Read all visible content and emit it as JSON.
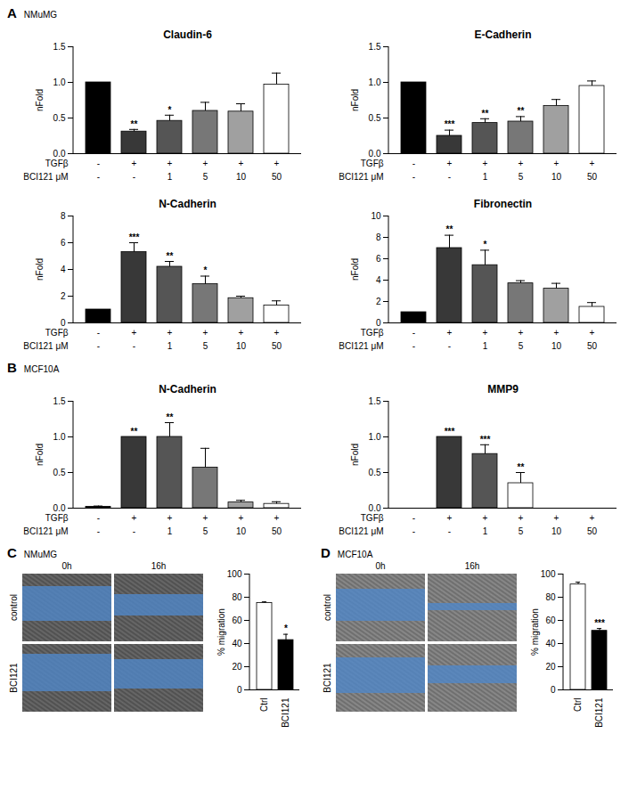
{
  "panels": [
    {
      "label": "A",
      "cell_line": "NMuMG"
    },
    {
      "label": "B",
      "cell_line": "MCF10A"
    },
    {
      "label": "C",
      "cell_line": "NMuMG"
    },
    {
      "label": "D",
      "cell_line": "MCF10A"
    }
  ],
  "chart_data": [
    {
      "panel": "A",
      "type": "bar",
      "title": "Claudin-6",
      "y_label": "nFold",
      "x_rows": [
        {
          "label": "TGFβ",
          "values": [
            "-",
            "+",
            "+",
            "+",
            "+",
            "+"
          ]
        },
        {
          "label": "BCI121 μM",
          "values": [
            "-",
            "-",
            "1",
            "5",
            "10",
            "50"
          ]
        }
      ],
      "values": [
        1.0,
        0.31,
        0.46,
        0.6,
        0.59,
        0.97
      ],
      "errors": [
        0,
        0.03,
        0.08,
        0.12,
        0.11,
        0.16
      ],
      "significance": [
        null,
        "**",
        "*",
        null,
        null,
        null
      ],
      "colors": [
        "#000000",
        "#383838",
        "#555555",
        "#777777",
        "#a0a0a0",
        "#ffffff"
      ],
      "ylim": [
        0,
        1.5
      ],
      "yticks": [
        {
          "value": 0,
          "label": "0.0"
        },
        {
          "value": 0.5,
          "label": "0.5"
        },
        {
          "value": 1,
          "label": "1.0"
        },
        {
          "value": 1.5,
          "label": "1.5"
        }
      ]
    },
    {
      "panel": "A",
      "type": "bar",
      "title": "E-Cadherin",
      "y_label": "nFold",
      "x_rows": [
        {
          "label": "TGFβ",
          "values": [
            "-",
            "+",
            "+",
            "+",
            "+",
            "+"
          ]
        },
        {
          "label": "BCI121 μM",
          "values": [
            "-",
            "-",
            "1",
            "5",
            "10",
            "50"
          ]
        }
      ],
      "values": [
        1.0,
        0.25,
        0.43,
        0.45,
        0.67,
        0.95
      ],
      "errors": [
        0,
        0.08,
        0.06,
        0.07,
        0.09,
        0.07
      ],
      "significance": [
        null,
        "***",
        "**",
        "**",
        null,
        null
      ],
      "colors": [
        "#000000",
        "#383838",
        "#555555",
        "#777777",
        "#a0a0a0",
        "#ffffff"
      ],
      "ylim": [
        0,
        1.5
      ],
      "yticks": [
        {
          "value": 0,
          "label": "0.0"
        },
        {
          "value": 0.5,
          "label": "0.5"
        },
        {
          "value": 1,
          "label": "1.0"
        },
        {
          "value": 1.5,
          "label": "1.5"
        }
      ]
    },
    {
      "panel": "A",
      "type": "bar",
      "title": "N-Cadherin",
      "y_label": "nFold",
      "x_rows": [
        {
          "label": "TGFβ",
          "values": [
            "-",
            "+",
            "+",
            "+",
            "+",
            "+"
          ]
        },
        {
          "label": "BCI121 μM",
          "values": [
            "-",
            "-",
            "1",
            "5",
            "10",
            "50"
          ]
        }
      ],
      "values": [
        1.0,
        5.3,
        4.2,
        2.9,
        1.85,
        1.3
      ],
      "errors": [
        0,
        0.7,
        0.4,
        0.6,
        0.15,
        0.35
      ],
      "significance": [
        null,
        "***",
        "**",
        "*",
        null,
        null
      ],
      "colors": [
        "#000000",
        "#383838",
        "#555555",
        "#777777",
        "#a0a0a0",
        "#ffffff"
      ],
      "ylim": [
        0,
        8
      ],
      "yticks": [
        0,
        2,
        4,
        6,
        8
      ]
    },
    {
      "panel": "A",
      "type": "bar",
      "title": "Fibronectin",
      "y_label": "nFold",
      "x_rows": [
        {
          "label": "TGFβ",
          "values": [
            "-",
            "+",
            "+",
            "+",
            "+",
            "+"
          ]
        },
        {
          "label": "BCI121 μM",
          "values": [
            "-",
            "-",
            "1",
            "5",
            "10",
            "50"
          ]
        }
      ],
      "values": [
        1.0,
        7.0,
        5.4,
        3.7,
        3.2,
        1.5
      ],
      "errors": [
        0,
        1.2,
        1.4,
        0.25,
        0.5,
        0.4
      ],
      "significance": [
        null,
        "**",
        "*",
        null,
        null,
        null
      ],
      "colors": [
        "#000000",
        "#383838",
        "#555555",
        "#777777",
        "#a0a0a0",
        "#ffffff"
      ],
      "ylim": [
        0,
        10
      ],
      "yticks": [
        0,
        2,
        4,
        6,
        8,
        10
      ]
    },
    {
      "panel": "B",
      "type": "bar",
      "title": "N-Cadherin",
      "y_label": "nFold",
      "x_rows": [
        {
          "label": "TGFβ",
          "values": [
            "-",
            "+",
            "+",
            "+",
            "+",
            "+"
          ]
        },
        {
          "label": "BCI121 μM",
          "values": [
            "-",
            "-",
            "1",
            "5",
            "10",
            "50"
          ]
        }
      ],
      "values": [
        0.02,
        1.0,
        1.0,
        0.57,
        0.08,
        0.06
      ],
      "errors": [
        0.01,
        0,
        0.2,
        0.27,
        0.03,
        0.03
      ],
      "significance": [
        null,
        "**",
        "**",
        null,
        null,
        null
      ],
      "colors": [
        "#000000",
        "#383838",
        "#555555",
        "#777777",
        "#a0a0a0",
        "#ffffff"
      ],
      "ylim": [
        0,
        1.5
      ],
      "yticks": [
        {
          "value": 0,
          "label": "0.0"
        },
        {
          "value": 0.5,
          "label": "0.5"
        },
        {
          "value": 1,
          "label": "1.0"
        },
        {
          "value": 1.5,
          "label": "1.5"
        }
      ]
    },
    {
      "panel": "B",
      "type": "bar",
      "title": "MMP9",
      "y_label": "nFold",
      "x_rows": [
        {
          "label": "TGFβ",
          "values": [
            "-",
            "+",
            "+",
            "+",
            "+",
            "+"
          ]
        },
        {
          "label": "BCI121 μM",
          "values": [
            "-",
            "-",
            "1",
            "5",
            "10",
            "50"
          ]
        }
      ],
      "values": [
        0,
        1.0,
        0.76,
        0.35,
        0,
        0
      ],
      "errors": [
        0,
        0,
        0.13,
        0.15,
        0,
        0
      ],
      "significance": [
        null,
        "***",
        "***",
        "**",
        null,
        null
      ],
      "colors": [
        "#000000",
        "#383838",
        "#555555",
        "#ffffff",
        "#a0a0a0",
        "#ffffff"
      ],
      "ylim": [
        0,
        1.5
      ],
      "yticks": [
        {
          "value": 0,
          "label": "0.0"
        },
        {
          "value": 0.5,
          "label": "0.5"
        },
        {
          "value": 1,
          "label": "1.0"
        },
        {
          "value": 1.5,
          "label": "1.5"
        }
      ]
    },
    {
      "panel": "C",
      "type": "bar",
      "y_label": "% migration",
      "categories": [
        "Ctrl",
        "BCI121"
      ],
      "values": [
        75,
        43
      ],
      "errors": [
        1,
        5
      ],
      "significance": [
        null,
        "*"
      ],
      "colors": [
        "#ffffff",
        "#000000"
      ],
      "ylim": [
        0,
        100
      ],
      "yticks": [
        0,
        20,
        40,
        60,
        80,
        100
      ]
    },
    {
      "panel": "D",
      "type": "bar",
      "y_label": "% migration",
      "categories": [
        "Ctrl",
        "BCI121"
      ],
      "values": [
        91,
        51
      ],
      "errors": [
        2,
        2
      ],
      "significance": [
        null,
        "***"
      ],
      "colors": [
        "#ffffff",
        "#000000"
      ],
      "ylim": [
        0,
        100
      ],
      "yticks": [
        0,
        20,
        40,
        60,
        80,
        100
      ]
    }
  ],
  "micrographs": [
    {
      "panel": "C",
      "columns": [
        "0h",
        "16h"
      ],
      "rows": [
        "control",
        "BCI121"
      ]
    },
    {
      "panel": "D",
      "columns": [
        "0h",
        "16h"
      ],
      "rows": [
        "control",
        "BCI121"
      ]
    }
  ]
}
